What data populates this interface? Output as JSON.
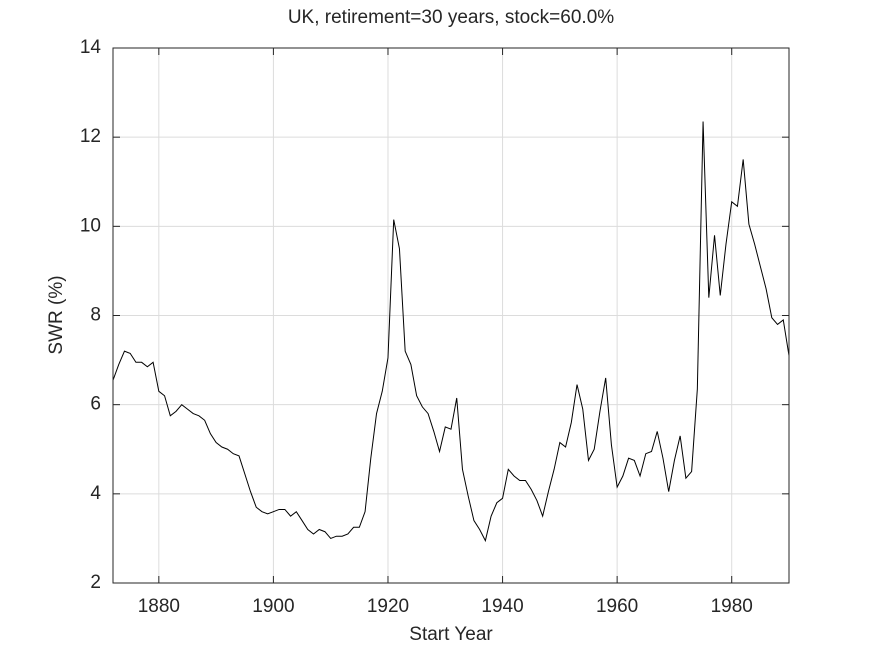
{
  "chart_data": {
    "type": "line",
    "title": "UK, retirement=30 years, stock=60.0%",
    "xlabel": "Start Year",
    "ylabel": "SWR (%)",
    "x": [
      1872,
      1873,
      1874,
      1875,
      1876,
      1877,
      1878,
      1879,
      1880,
      1881,
      1882,
      1883,
      1884,
      1885,
      1886,
      1887,
      1888,
      1889,
      1890,
      1891,
      1892,
      1893,
      1894,
      1895,
      1896,
      1897,
      1898,
      1899,
      1900,
      1901,
      1902,
      1903,
      1904,
      1905,
      1906,
      1907,
      1908,
      1909,
      1910,
      1911,
      1912,
      1913,
      1914,
      1915,
      1916,
      1917,
      1918,
      1919,
      1920,
      1921,
      1922,
      1923,
      1924,
      1925,
      1926,
      1927,
      1928,
      1929,
      1930,
      1931,
      1932,
      1933,
      1934,
      1935,
      1936,
      1937,
      1938,
      1939,
      1940,
      1941,
      1942,
      1943,
      1944,
      1945,
      1946,
      1947,
      1948,
      1949,
      1950,
      1951,
      1952,
      1953,
      1954,
      1955,
      1956,
      1957,
      1958,
      1959,
      1960,
      1961,
      1962,
      1963,
      1964,
      1965,
      1966,
      1967,
      1968,
      1969,
      1970,
      1971,
      1972,
      1973,
      1974,
      1975,
      1976,
      1977,
      1978,
      1979,
      1980,
      1981,
      1982,
      1983,
      1984,
      1985,
      1986,
      1987,
      1988,
      1989,
      1990
    ],
    "series": [
      {
        "name": "SWR",
        "color": "#000000",
        "values": [
          6.55,
          6.9,
          7.2,
          7.15,
          6.95,
          6.95,
          6.85,
          6.95,
          6.3,
          6.2,
          5.75,
          5.85,
          6.0,
          5.9,
          5.8,
          5.75,
          5.65,
          5.35,
          5.15,
          5.05,
          5.0,
          4.9,
          4.85,
          4.45,
          4.05,
          3.7,
          3.6,
          3.55,
          3.6,
          3.65,
          3.65,
          3.5,
          3.6,
          3.4,
          3.2,
          3.1,
          3.2,
          3.15,
          3.0,
          3.05,
          3.05,
          3.1,
          3.25,
          3.25,
          3.6,
          4.8,
          5.8,
          6.3,
          7.05,
          10.15,
          9.5,
          7.2,
          6.9,
          6.2,
          5.95,
          5.8,
          5.4,
          4.95,
          5.5,
          5.45,
          6.15,
          4.55,
          3.95,
          3.4,
          3.2,
          2.95,
          3.5,
          3.8,
          3.9,
          4.55,
          4.4,
          4.3,
          4.3,
          4.1,
          3.85,
          3.5,
          4.05,
          4.55,
          5.15,
          5.05,
          5.6,
          6.45,
          5.9,
          4.75,
          5.0,
          5.85,
          6.6,
          5.1,
          4.15,
          4.4,
          4.8,
          4.75,
          4.4,
          4.9,
          4.95,
          5.4,
          4.8,
          4.05,
          4.75,
          5.3,
          4.35,
          4.5,
          6.35,
          12.35,
          8.4,
          9.8,
          8.45,
          9.6,
          10.55,
          10.45,
          11.5,
          10.05,
          9.6,
          9.1,
          8.6,
          7.95,
          7.8,
          7.9,
          7.1
        ]
      }
    ],
    "xlim": [
      1872,
      1990
    ],
    "xticks": [
      1880,
      1900,
      1920,
      1940,
      1960,
      1980
    ],
    "ylim": [
      2,
      14
    ],
    "yticks": [
      2,
      4,
      6,
      8,
      10,
      12,
      14
    ],
    "grid": true
  }
}
